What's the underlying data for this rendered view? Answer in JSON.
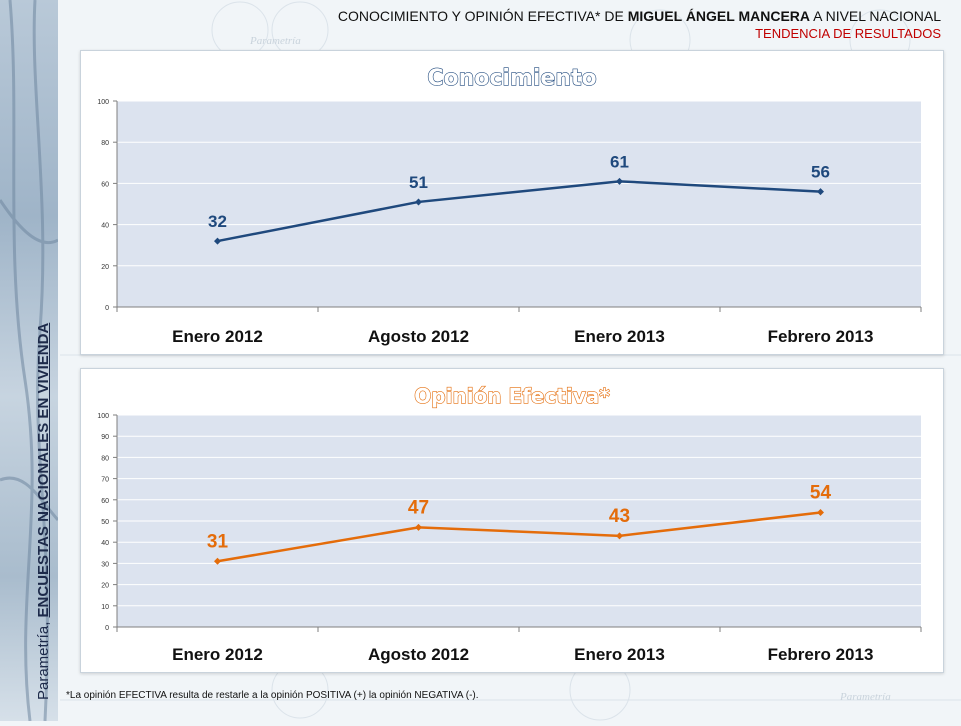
{
  "header": {
    "prefix": "CONOCIMIENTO Y OPINIÓN EFECTIVA* DE ",
    "name": "MIGUEL ÁNGEL MANCERA",
    "suffix": " A NIVEL NACIONAL",
    "subtitle": "TENDENCIA DE RESULTADOS"
  },
  "sidebar": {
    "brand": "Parametría, ",
    "label": "ENCUESTAS NACIONALES EN VIVIENDA"
  },
  "watermark": "Parametría",
  "footnote": "*La opinión EFECTIVA resulta de restarle a la opinión POSITIVA (+) la opinión NEGATIVA (-).",
  "colors": {
    "series1": "#1f497d",
    "series2": "#e46c0a",
    "plot_bg": "#dce3ef",
    "header_red": "#c00000"
  },
  "chart_data": [
    {
      "type": "line",
      "title": "Conocimiento",
      "categories": [
        "Enero 2012",
        "Agosto 2012",
        "Enero 2013",
        "Febrero 2013"
      ],
      "series": [
        {
          "values": [
            32,
            51,
            61,
            56
          ]
        }
      ],
      "ylim": [
        0,
        100
      ],
      "yticks": [
        0,
        20,
        40,
        60,
        80,
        100
      ],
      "grid": true,
      "data_labels": true
    },
    {
      "type": "line",
      "title": "Opinión Efectiva*",
      "categories": [
        "Enero 2012",
        "Agosto 2012",
        "Enero 2013",
        "Febrero 2013"
      ],
      "series": [
        {
          "values": [
            31,
            47,
            43,
            54
          ]
        }
      ],
      "ylim": [
        0,
        100
      ],
      "yticks": [
        0,
        10,
        20,
        30,
        40,
        50,
        60,
        70,
        80,
        90,
        100
      ],
      "grid": true,
      "data_labels": true
    }
  ]
}
